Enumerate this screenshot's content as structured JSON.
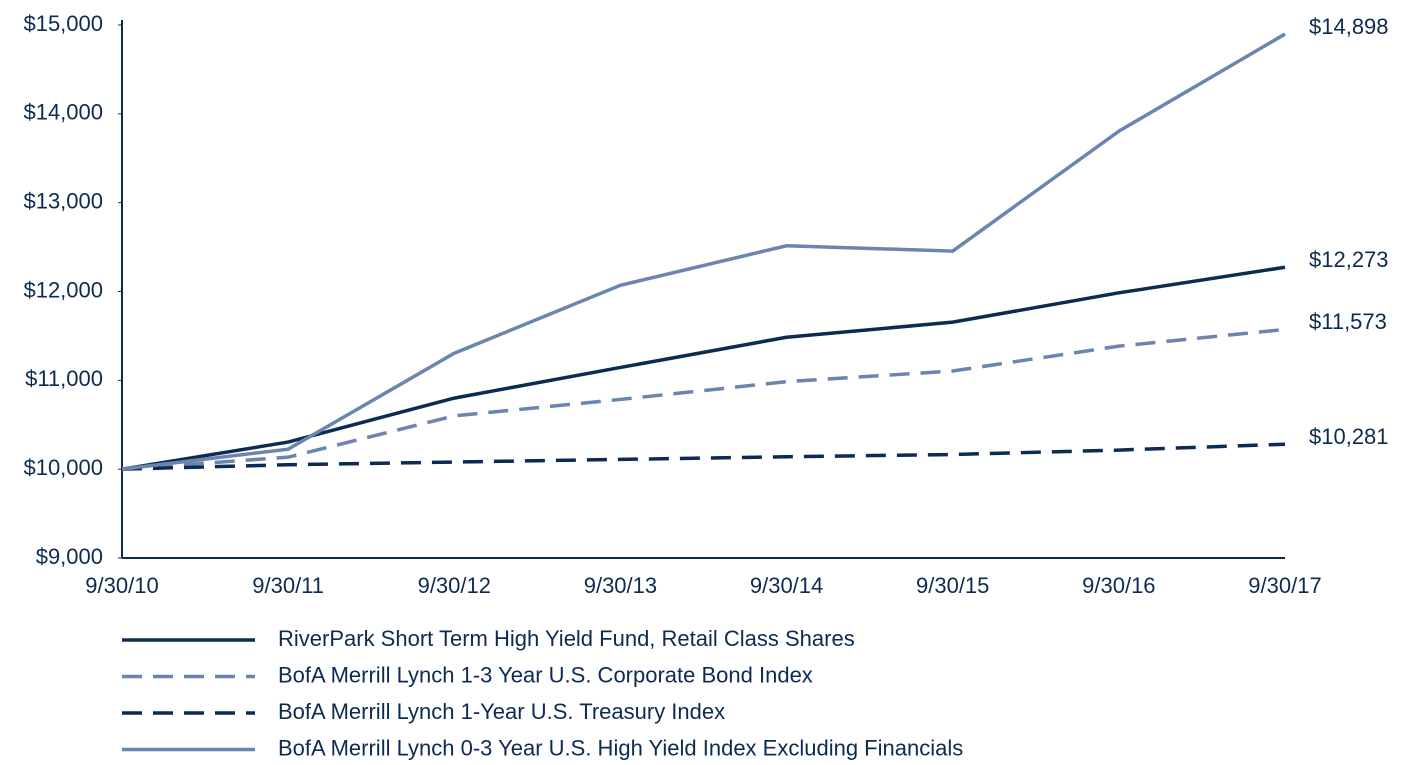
{
  "chart_data": {
    "type": "line",
    "categories": [
      "9/30/10",
      "9/30/11",
      "9/30/12",
      "9/30/13",
      "9/30/14",
      "9/30/15",
      "9/30/16",
      "9/30/17"
    ],
    "series": [
      {
        "name": "RiverPark Short Term High Yield Fund, Retail Class Shares",
        "color": "#0d2b52",
        "dashed": false,
        "values": [
          10000,
          10305,
          10800,
          11145,
          11485,
          11655,
          11985,
          12273
        ],
        "value_labels": [
          null,
          null,
          null,
          null,
          null,
          null,
          null,
          "$12,273"
        ]
      },
      {
        "name": "BofA Merrill Lynch 1-3 Year U.S. Corporate Bond Index",
        "color": "#6b84b0",
        "dashed": true,
        "values": [
          10000,
          10135,
          10600,
          10785,
          10985,
          11105,
          11385,
          11573
        ],
        "value_labels": [
          null,
          null,
          null,
          null,
          null,
          null,
          null,
          "$11,573"
        ]
      },
      {
        "name": "BofA Merrill Lynch 1-Year U.S. Treasury Index",
        "color": "#0d2b52",
        "dashed": true,
        "values": [
          10000,
          10050,
          10080,
          10110,
          10140,
          10165,
          10215,
          10281
        ],
        "value_labels": [
          null,
          null,
          null,
          null,
          null,
          null,
          null,
          "$10,281"
        ]
      },
      {
        "name": "BofA Merrill Lynch 0-3 Year U.S. High Yield Index Excluding Financials",
        "color": "#6b84b0",
        "dashed": false,
        "values": [
          10000,
          10225,
          11305,
          12070,
          12515,
          12455,
          13805,
          14898
        ],
        "value_labels": [
          null,
          null,
          null,
          null,
          null,
          null,
          null,
          "$14,898"
        ]
      }
    ],
    "ylim": [
      9000,
      15000
    ],
    "yticks": [
      {
        "value": 9000,
        "label": "$9,000"
      },
      {
        "value": 10000,
        "label": "$10,000"
      },
      {
        "value": 11000,
        "label": "$11,000"
      },
      {
        "value": 12000,
        "label": "$12,000"
      },
      {
        "value": 13000,
        "label": "$13,000"
      },
      {
        "value": 14000,
        "label": "$14,000"
      },
      {
        "value": 15000,
        "label": "$15,000"
      }
    ],
    "grid": false
  }
}
